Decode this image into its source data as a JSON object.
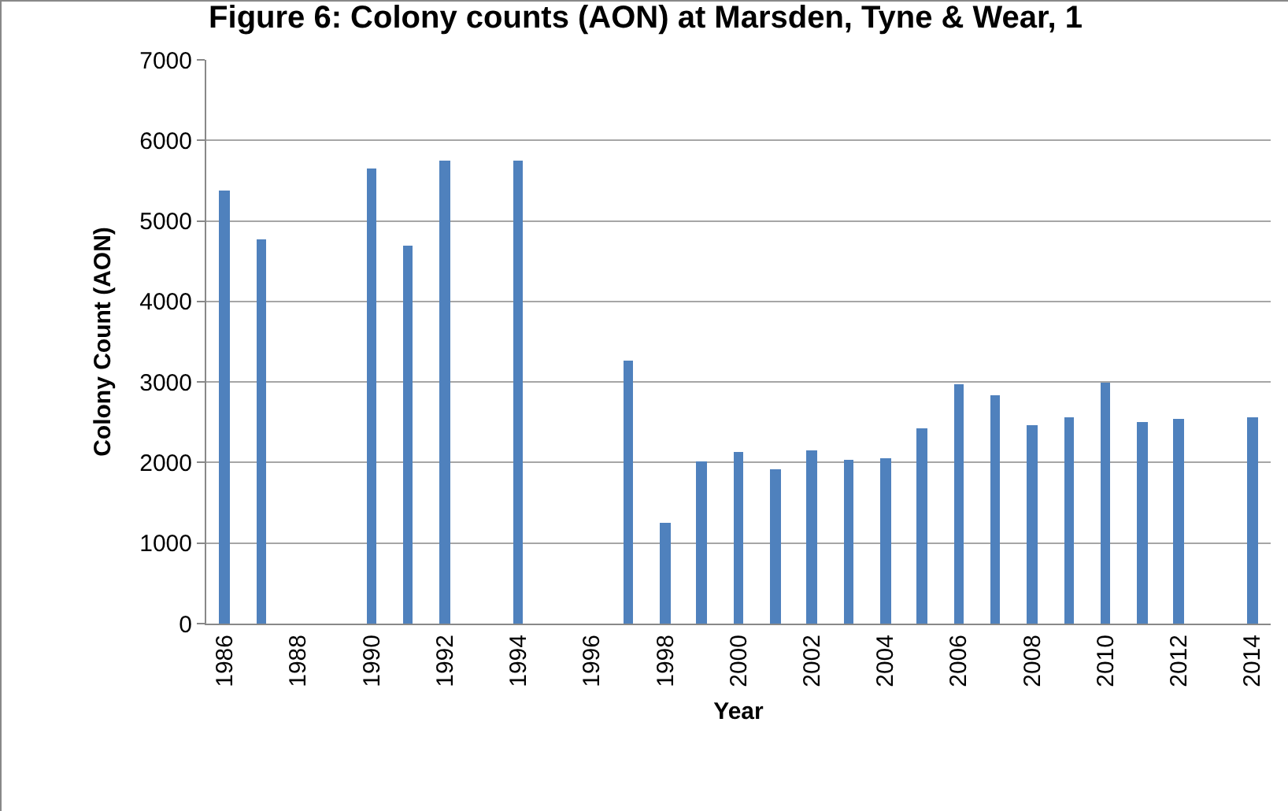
{
  "chart_data": {
    "type": "bar",
    "title": "Figure 6: Colony counts (AON) at Marsden, Tyne & Wear, 1",
    "xlabel": "Year",
    "ylabel": "Colony Count (AON)",
    "categories": [
      "1986",
      null,
      "1988",
      null,
      "1990",
      null,
      "1992",
      null,
      "1994",
      null,
      "1996",
      null,
      "1998",
      null,
      "2000",
      null,
      "2002",
      null,
      "2004",
      null,
      "2006",
      null,
      "2008",
      null,
      "2010",
      null,
      "2012",
      null,
      "2014"
    ],
    "values": [
      5370,
      4780,
      null,
      null,
      5650,
      4700,
      5750,
      null,
      5750,
      null,
      null,
      3270,
      1260,
      2020,
      2130,
      1910,
      2150,
      2030,
      2050,
      2430,
      2970,
      2840,
      2460,
      2570,
      3000,
      2500,
      2540,
      null,
      2570
    ],
    "color": "#4f81bd",
    "ylim": [
      0,
      7000
    ],
    "yticks": [
      0,
      1000,
      2000,
      3000,
      4000,
      5000,
      6000,
      7000
    ],
    "grid": "y",
    "legend": false
  }
}
